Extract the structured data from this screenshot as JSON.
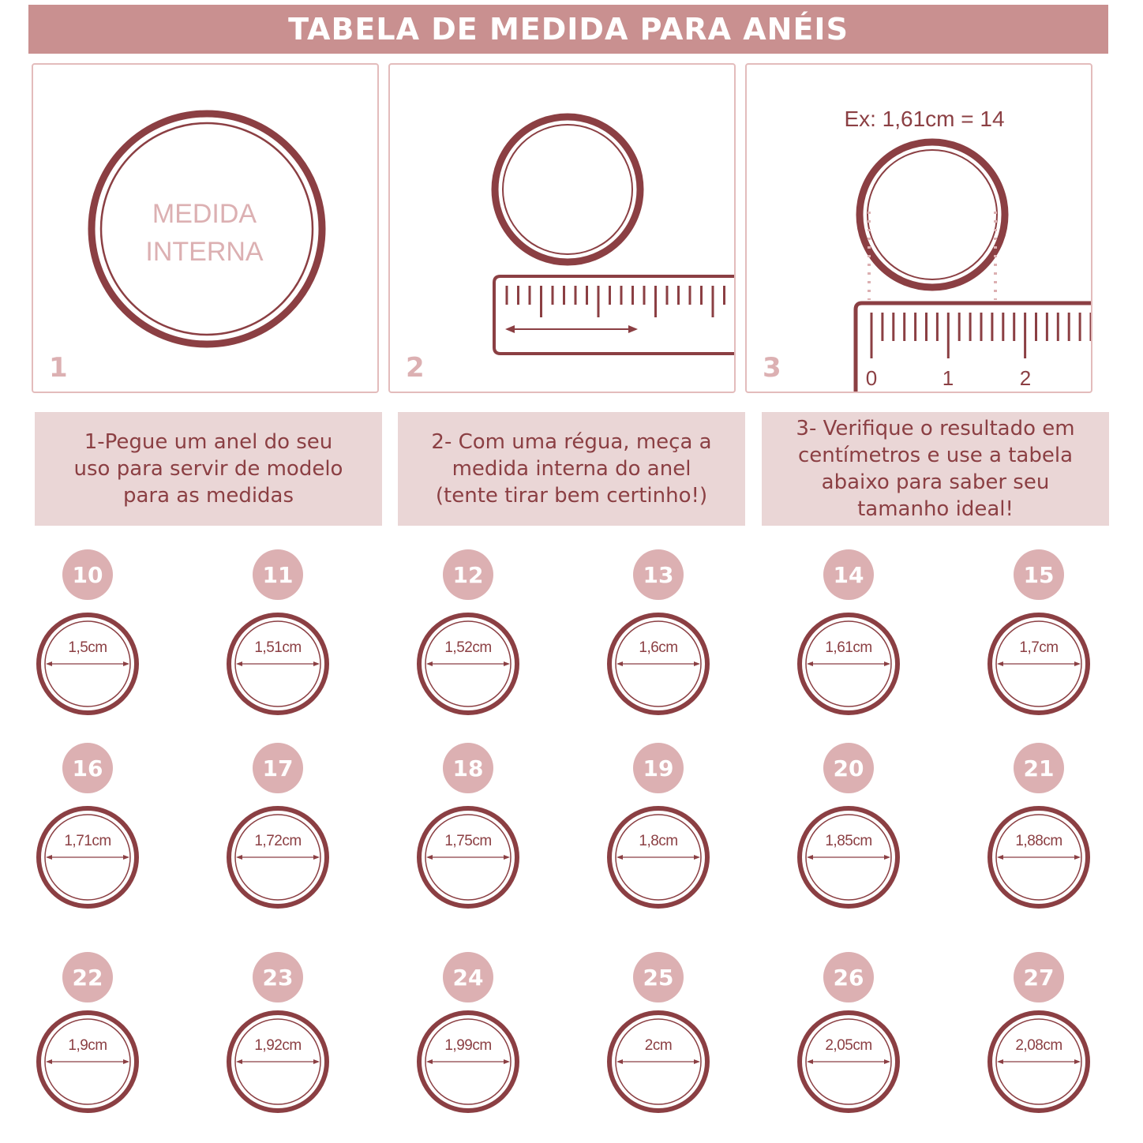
{
  "header": {
    "title": "TABELA DE MEDIDA PARA ANÉIS"
  },
  "panels": [
    {
      "number": "1",
      "ring_text_line1": "MEDIDA",
      "ring_text_line2": "INTERNA"
    },
    {
      "number": "2"
    },
    {
      "number": "3",
      "example": "Ex: 1,61cm = 14",
      "ruler_labels": [
        "0",
        "1",
        "2"
      ]
    }
  ],
  "captions": [
    "1-Pegue um anel do seu\nuso para servir de modelo\npara as medidas",
    "2- Com uma régua, meça a\nmedida interna do anel\n(tente tirar bem certinho!)",
    "3- Verifique o resultado em\ncentímetros e use a tabela\nabaixo para saber seu\ntamanho ideal!"
  ],
  "sizes": [
    {
      "size": "10",
      "measure": "1,5cm"
    },
    {
      "size": "11",
      "measure": "1,51cm"
    },
    {
      "size": "12",
      "measure": "1,52cm"
    },
    {
      "size": "13",
      "measure": "1,6cm"
    },
    {
      "size": "14",
      "measure": "1,61cm"
    },
    {
      "size": "15",
      "measure": "1,7cm"
    },
    {
      "size": "16",
      "measure": "1,71cm"
    },
    {
      "size": "17",
      "measure": "1,72cm"
    },
    {
      "size": "18",
      "measure": "1,75cm"
    },
    {
      "size": "19",
      "measure": "1,8cm"
    },
    {
      "size": "20",
      "measure": "1,85cm"
    },
    {
      "size": "21",
      "measure": "1,88cm"
    },
    {
      "size": "22",
      "measure": "1,9cm"
    },
    {
      "size": "23",
      "measure": "1,92cm"
    },
    {
      "size": "24",
      "measure": "1,99cm"
    },
    {
      "size": "25",
      "measure": "2cm"
    },
    {
      "size": "26",
      "measure": "2,05cm"
    },
    {
      "size": "27",
      "measure": "2,08cm"
    }
  ],
  "colors": {
    "ring": "#8b3f43",
    "badge": "#dcb0b2",
    "title_bar": "#c99090",
    "caption_bg": "#ead6d6"
  }
}
